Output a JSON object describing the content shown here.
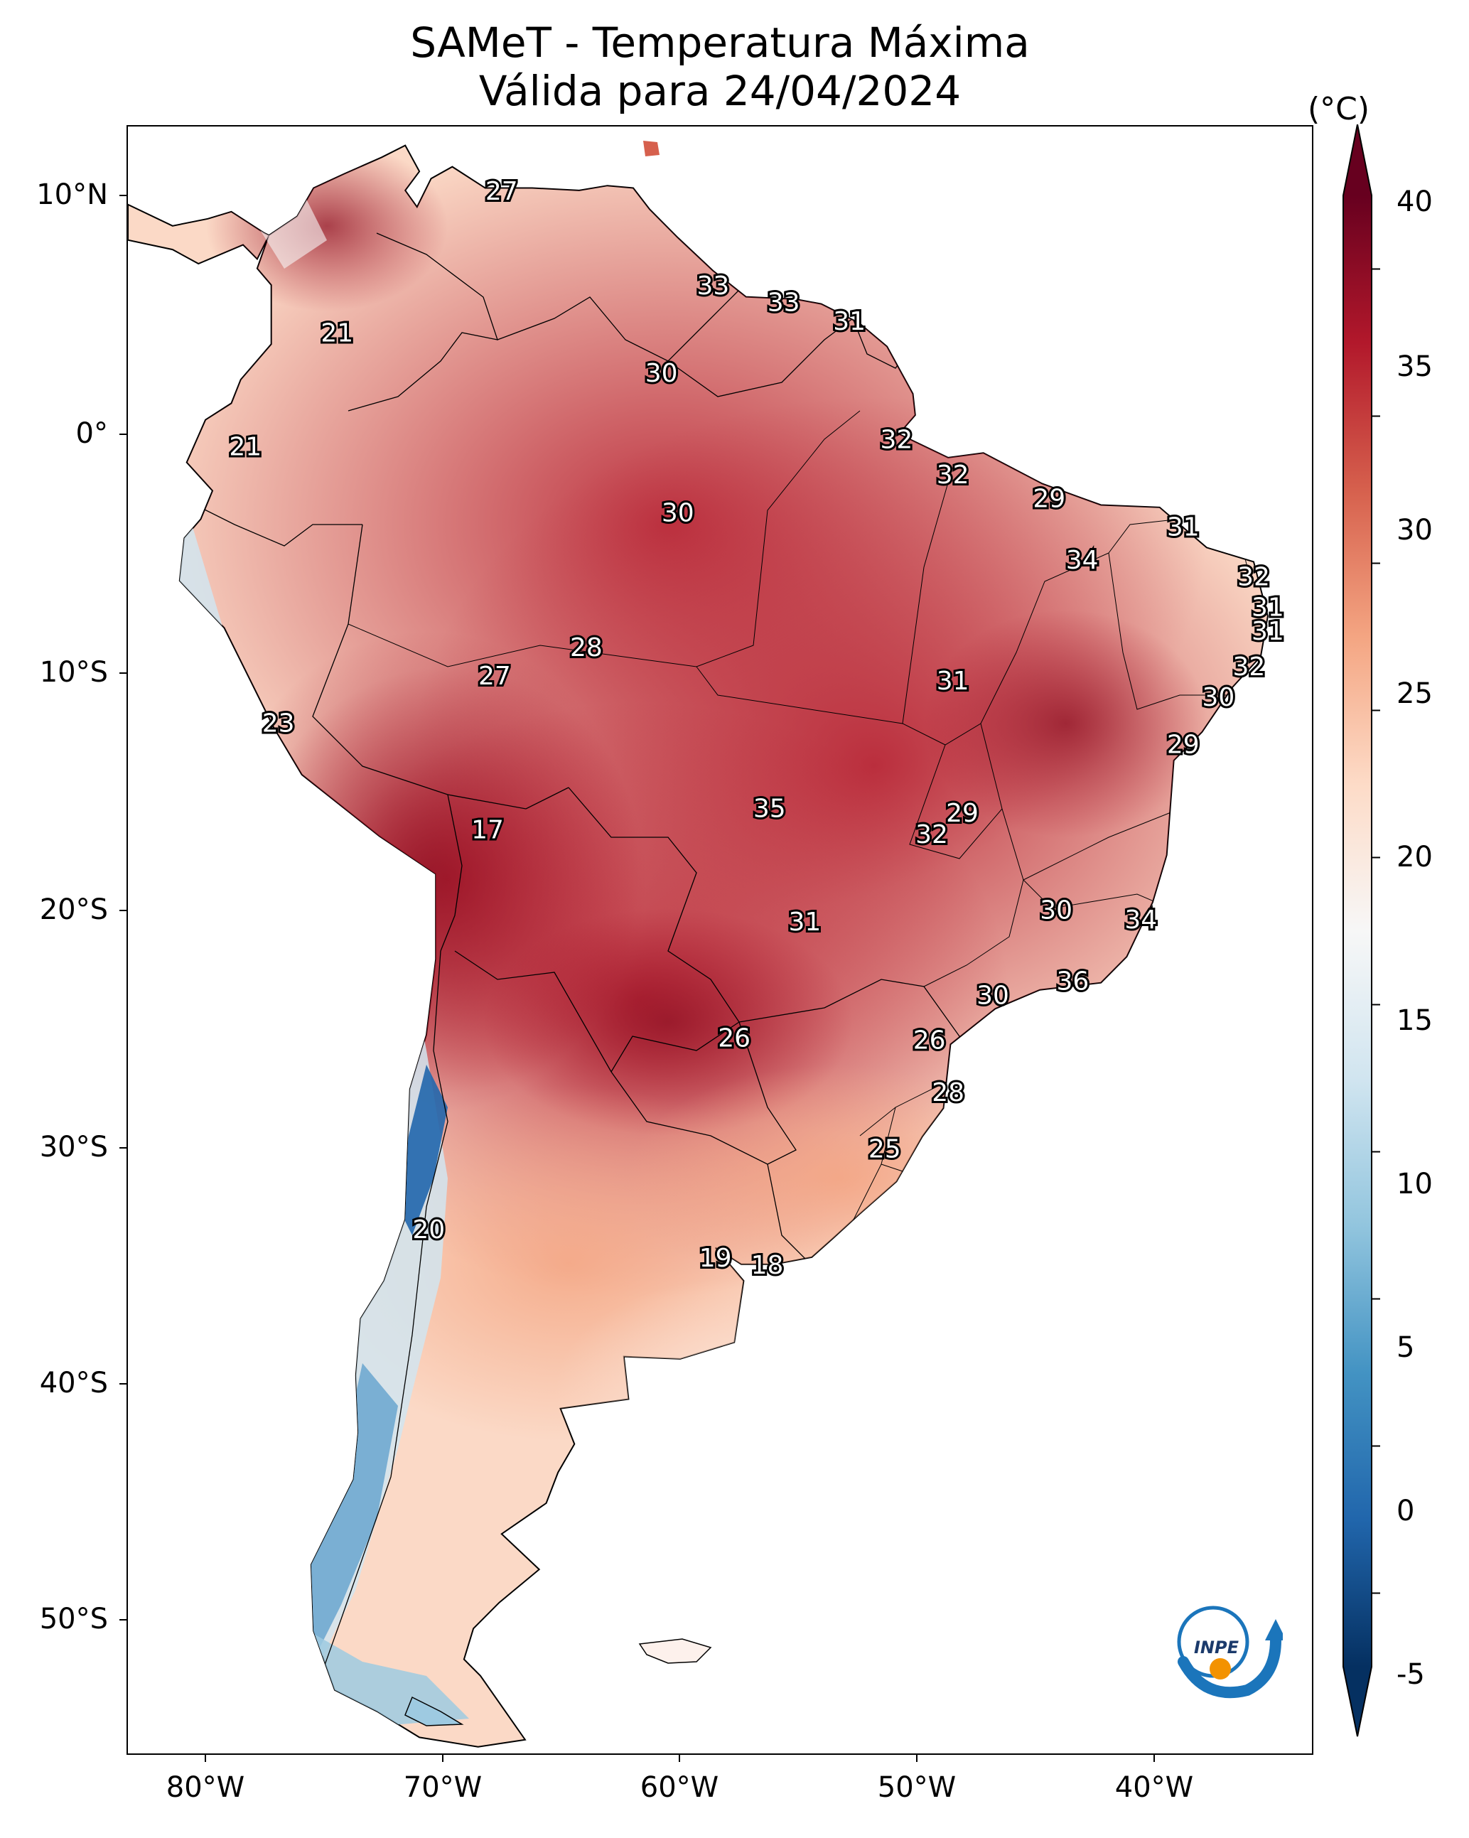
{
  "title_line1": "SAMeT - Temperatura Máxima",
  "title_line2": "Válida para 24/04/2024",
  "colorbar": {
    "unit": "(°C)",
    "ticks": [
      "40",
      "35",
      "30",
      "25",
      "20",
      "15",
      "10",
      "5",
      "0",
      "-5"
    ],
    "min": -5,
    "max": 40,
    "colors": [
      "#053061",
      "#2166ac",
      "#4393c3",
      "#92c5de",
      "#d1e5f0",
      "#f7f7f7",
      "#fddbc7",
      "#f4a582",
      "#d6604d",
      "#b2182b",
      "#67001f"
    ]
  },
  "axes": {
    "lat_labels": [
      "10°N",
      "0°",
      "10°S",
      "20°S",
      "30°S",
      "40°S",
      "50°S"
    ],
    "lon_labels": [
      "80°W",
      "70°W",
      "60°W",
      "50°W",
      "40°W"
    ]
  },
  "points": [
    {
      "label": "27",
      "lon": -67.5,
      "lat": 10.5
    },
    {
      "label": "21",
      "lon": -74.5,
      "lat": 4.5
    },
    {
      "label": "33",
      "lon": -58.5,
      "lat": 6.5
    },
    {
      "label": "33",
      "lon": -55.5,
      "lat": 5.8
    },
    {
      "label": "31",
      "lon": -52.7,
      "lat": 5.0
    },
    {
      "label": "30",
      "lon": -60.7,
      "lat": 2.8
    },
    {
      "label": "21",
      "lon": -78.4,
      "lat": -0.3
    },
    {
      "label": "32",
      "lon": -50.7,
      "lat": 0.0
    },
    {
      "label": "32",
      "lon": -48.3,
      "lat": -1.5
    },
    {
      "label": "29",
      "lon": -44.2,
      "lat": -2.5
    },
    {
      "label": "30",
      "lon": -60.0,
      "lat": -3.1
    },
    {
      "label": "31",
      "lon": -38.5,
      "lat": -3.7
    },
    {
      "label": "34",
      "lon": -42.8,
      "lat": -5.1
    },
    {
      "label": "32",
      "lon": -35.5,
      "lat": -5.8
    },
    {
      "label": "31",
      "lon": -34.9,
      "lat": -7.1
    },
    {
      "label": "31",
      "lon": -34.9,
      "lat": -8.1
    },
    {
      "label": "28",
      "lon": -63.9,
      "lat": -8.8
    },
    {
      "label": "27",
      "lon": -67.8,
      "lat": -10.0
    },
    {
      "label": "32",
      "lon": -35.7,
      "lat": -9.6
    },
    {
      "label": "31",
      "lon": -48.3,
      "lat": -10.2
    },
    {
      "label": "30",
      "lon": -37.0,
      "lat": -10.9
    },
    {
      "label": "23",
      "lon": -77.0,
      "lat": -12.0
    },
    {
      "label": "29",
      "lon": -38.5,
      "lat": -12.9
    },
    {
      "label": "35",
      "lon": -56.1,
      "lat": -15.6
    },
    {
      "label": "29",
      "lon": -47.9,
      "lat": -15.8
    },
    {
      "label": "17",
      "lon": -68.1,
      "lat": -16.5
    },
    {
      "label": "32",
      "lon": -49.2,
      "lat": -16.7
    },
    {
      "label": "30",
      "lon": -43.9,
      "lat": -19.9
    },
    {
      "label": "34",
      "lon": -40.3,
      "lat": -20.3
    },
    {
      "label": "31",
      "lon": -54.6,
      "lat": -20.4
    },
    {
      "label": "36",
      "lon": -43.2,
      "lat": -22.9
    },
    {
      "label": "30",
      "lon": -46.6,
      "lat": -23.5
    },
    {
      "label": "26",
      "lon": -57.6,
      "lat": -25.3
    },
    {
      "label": "26",
      "lon": -49.3,
      "lat": -25.4
    },
    {
      "label": "28",
      "lon": -48.5,
      "lat": -27.6
    },
    {
      "label": "25",
      "lon": -51.2,
      "lat": -30.0
    },
    {
      "label": "20",
      "lon": -70.6,
      "lat": -33.4
    },
    {
      "label": "19",
      "lon": -58.4,
      "lat": -34.6
    },
    {
      "label": "18",
      "lon": -56.2,
      "lat": -34.9
    }
  ],
  "logo_text": "INPE"
}
